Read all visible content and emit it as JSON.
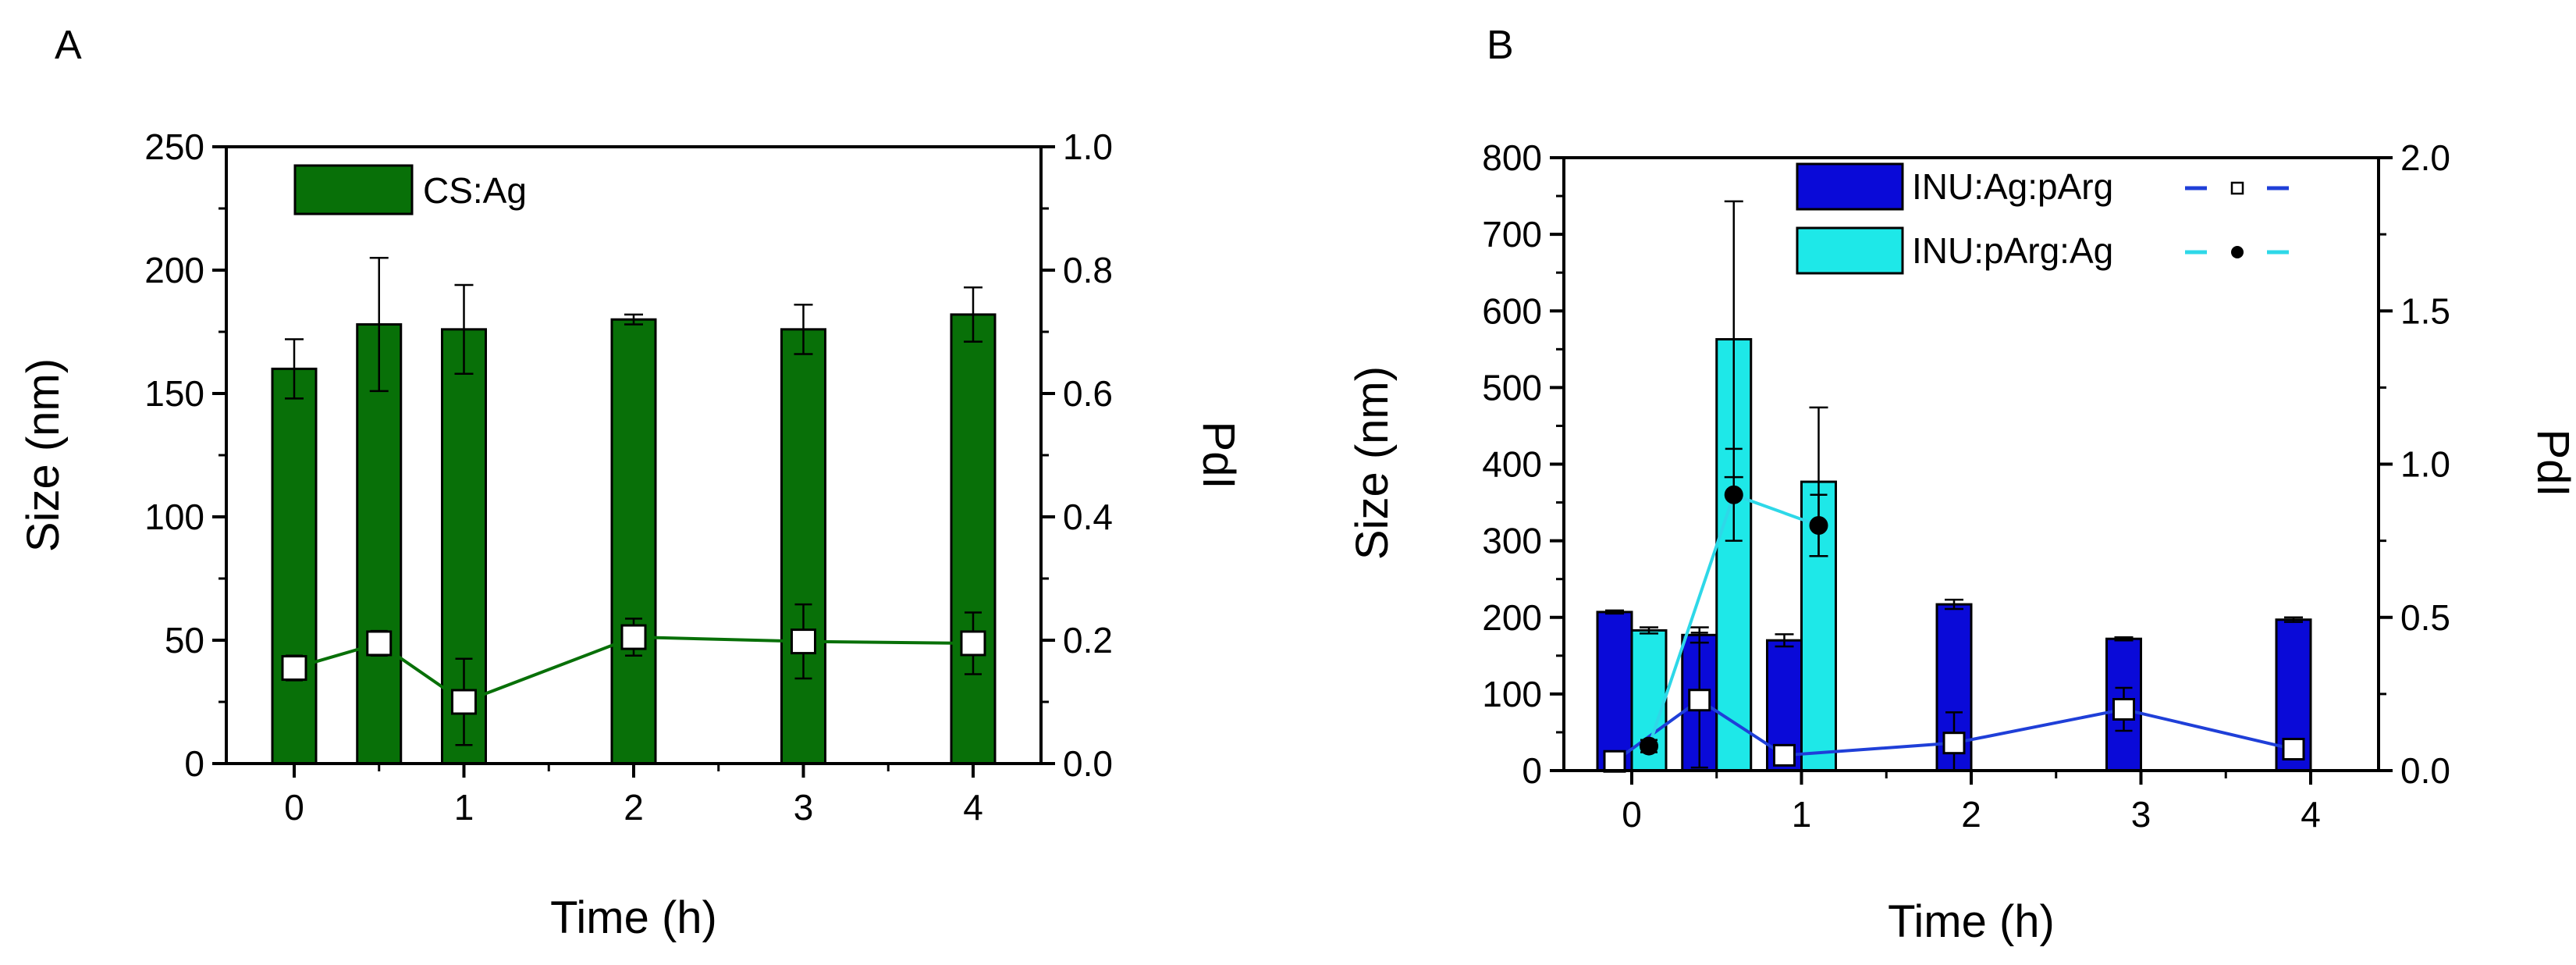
{
  "chart_data": [
    {
      "panel_label": "A",
      "type": "bar",
      "xlabel": "Time (h)",
      "ylabel": "Size (nm)",
      "y2label": "PdI",
      "xlim": [
        -0.4,
        4.4
      ],
      "ylim": [
        0,
        250
      ],
      "y2lim": [
        0,
        1.0
      ],
      "x_ticks": [
        "0",
        "1",
        "2",
        "3",
        "4"
      ],
      "x_tick_values": [
        0,
        1,
        2,
        3,
        4
      ],
      "y_ticks": [
        "0",
        "50",
        "100",
        "150",
        "200",
        "250"
      ],
      "y_tick_values": [
        0,
        50,
        100,
        150,
        200,
        250
      ],
      "y2_ticks": [
        "0.0",
        "0.2",
        "0.4",
        "0.6",
        "0.8",
        "1.0"
      ],
      "y2_tick_values": [
        0,
        0.2,
        0.4,
        0.6,
        0.8,
        1.0
      ],
      "series": [
        {
          "name": "CS:Ag",
          "kind": "bar",
          "color": "#087008",
          "x": [
            0,
            0.5,
            1,
            2,
            3,
            4
          ],
          "values": [
            160,
            178,
            176,
            180,
            176,
            182
          ],
          "errors": [
            12,
            27,
            18,
            2,
            10,
            11
          ]
        },
        {
          "name": "CS:Ag PdI",
          "kind": "line-marker",
          "color": "#087008",
          "marker": "open-square",
          "x": [
            0,
            0.5,
            1,
            2,
            3,
            4
          ],
          "values": [
            0.155,
            0.195,
            0.1,
            0.205,
            0.198,
            0.195
          ],
          "errors": [
            0.02,
            0.02,
            0.07,
            0.03,
            0.06,
            0.05
          ]
        }
      ],
      "legend": [
        {
          "label": "CS:Ag",
          "color": "#087008"
        }
      ],
      "legend_position": "top-left"
    },
    {
      "panel_label": "B",
      "type": "bar",
      "xlabel": "Time (h)",
      "ylabel": "Size (nm)",
      "y2label": "PdI",
      "xlim": [
        -0.4,
        4.4
      ],
      "ylim": [
        0,
        800
      ],
      "y2lim": [
        0,
        2.0
      ],
      "x_ticks": [
        "0",
        "1",
        "2",
        "3",
        "4"
      ],
      "x_tick_values": [
        0,
        1,
        2,
        3,
        4
      ],
      "y_ticks": [
        "0",
        "100",
        "200",
        "300",
        "400",
        "500",
        "600",
        "700",
        "800"
      ],
      "y_tick_values": [
        0,
        100,
        200,
        300,
        400,
        500,
        600,
        700,
        800
      ],
      "y2_ticks": [
        "0.0",
        "0.5",
        "1.0",
        "1.5",
        "2.0"
      ],
      "y2_tick_values": [
        0,
        0.5,
        1.0,
        1.5,
        2.0
      ],
      "series": [
        {
          "name": "INU:Ag:pArg",
          "kind": "bar",
          "color": "#0a0ad8",
          "x": [
            0,
            0.5,
            1,
            2,
            3,
            4
          ],
          "values": [
            207,
            177,
            170,
            217,
            172,
            197
          ],
          "errors": [
            2,
            10,
            8,
            6,
            2,
            3
          ]
        },
        {
          "name": "INU:pArg:Ag",
          "kind": "bar",
          "color": "#1ee8e8",
          "x": [
            0,
            0.5,
            1
          ],
          "values": [
            183,
            563,
            377
          ],
          "errors": [
            4,
            180,
            97
          ]
        },
        {
          "name": "INU:Ag:pArg PdI",
          "kind": "line-marker",
          "color": "#1f3fd8",
          "marker": "open-square",
          "x": [
            0,
            0.5,
            1,
            2,
            3,
            4
          ],
          "values": [
            0.03,
            0.23,
            0.05,
            0.09,
            0.2,
            0.07
          ],
          "errors": [
            0.02,
            0.22,
            0.03,
            0.1,
            0.07,
            0.02
          ]
        },
        {
          "name": "INU:pArg:Ag PdI",
          "kind": "line-marker",
          "color": "#2ed8e8",
          "marker": "filled-circle",
          "x": [
            0,
            0.5,
            1
          ],
          "values": [
            0.08,
            0.9,
            0.8
          ],
          "errors": [
            0.02,
            0.15,
            0.1
          ]
        }
      ],
      "legend": [
        {
          "label": "INU:Ag:pArg",
          "color": "#0a0ad8",
          "line_color": "#1f3fd8",
          "marker": "open-square"
        },
        {
          "label": "INU:pArg:Ag",
          "color": "#1ee8e8",
          "line_color": "#2ed8e8",
          "marker": "filled-circle"
        }
      ],
      "legend_position": "top-right"
    }
  ]
}
